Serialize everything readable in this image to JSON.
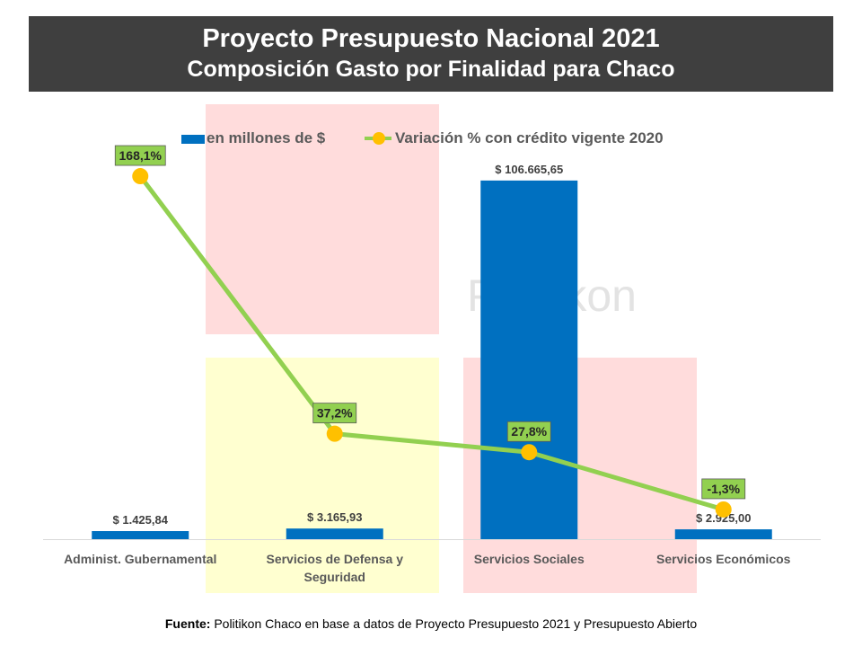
{
  "header": {
    "title": "Proyecto Presupuesto Nacional 2021",
    "subtitle": "Composición Gasto por Finalidad para Chaco"
  },
  "watermark": "Politikon",
  "legend": {
    "bar_label": "en millones de $",
    "line_label": "Variación % con crédito vigente 2020"
  },
  "footer": {
    "source_label": "Fuente:",
    "source_text": " Politikon Chaco en base a datos de Proyecto Presupuesto 2021 y Presupuesto Abierto"
  },
  "colors": {
    "bar": "#0070c0",
    "line": "#92d050",
    "marker": "#ffc000",
    "label_box": "#92d050"
  },
  "chart_data": {
    "type": "bar",
    "title": "Proyecto Presupuesto Nacional 2021",
    "subtitle": "Composición Gasto por Finalidad para Chaco",
    "categories": [
      [
        "Administ. Gubernamental"
      ],
      [
        "Servicios de Defensa y",
        "Seguridad"
      ],
      [
        "Servicios Sociales"
      ],
      [
        "Servicios Económicos"
      ]
    ],
    "series": [
      {
        "name": "en millones de $",
        "type": "bar",
        "values": [
          1425.84,
          3165.93,
          106665.65,
          2925.0
        ],
        "labels": [
          "$ 1.425,84",
          "$ 3.165,93",
          "$ 106.665,65",
          "$ 2.925,00"
        ]
      },
      {
        "name": "Variación % con crédito vigente 2020",
        "type": "line",
        "values": [
          168.1,
          37.2,
          27.8,
          -1.3
        ],
        "labels": [
          "168,1%",
          "37,2%",
          "27,8%",
          "-1,3%"
        ]
      }
    ],
    "legend": "top",
    "grid": false
  }
}
